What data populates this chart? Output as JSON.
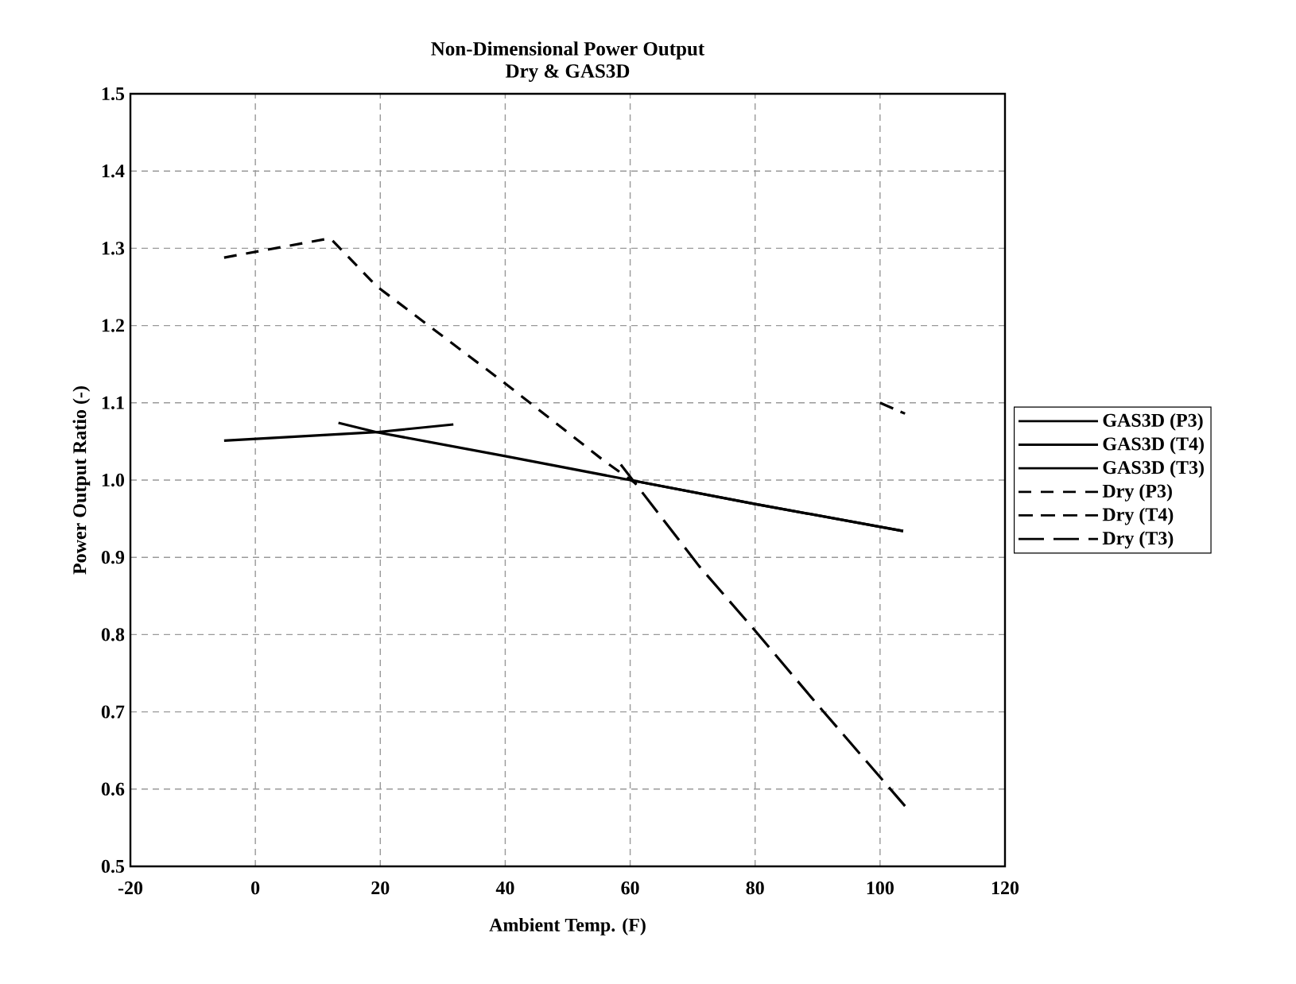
{
  "chart_data": {
    "type": "line",
    "title": "Non-Dimensional Power Output",
    "subtitle": "Dry & GAS3D",
    "xlabel": "Ambient Temp. (F)",
    "ylabel": "Power Output Ratio (-)",
    "xlim": [
      -20,
      120
    ],
    "xticks": [
      -20,
      0,
      20,
      40,
      60,
      80,
      100,
      120
    ],
    "ylim": [
      0.5,
      1.5
    ],
    "yticks": [
      0.5,
      0.6,
      0.7,
      0.8,
      0.9,
      {
        "value": 1.0,
        "label": "1.0"
      },
      1.1,
      1.2,
      1.3,
      1.4,
      1.5
    ],
    "grid": true,
    "legend": "right",
    "marker": "none",
    "series": [
      {
        "name": "GAS3D (P3)",
        "color": "#000000",
        "line_style": "solid",
        "x": [
          -5,
          19.4,
          31.7
        ],
        "values": [
          1.051,
          1.062,
          1.072
        ]
      },
      {
        "name": "GAS3D (T4)",
        "color": "#000000",
        "line_style": "solid",
        "x": [
          13.3,
          19.4,
          40,
          60,
          80,
          103.7
        ],
        "values": [
          1.074,
          1.062,
          1.031,
          1.0,
          0.969,
          0.934
        ]
      },
      {
        "name": "GAS3D (T3)",
        "color": "#000000",
        "line_style": "solid",
        "x": [
          60,
          80,
          103.7
        ],
        "values": [
          1.0,
          0.969,
          0.934
        ]
      },
      {
        "name": "Dry  (P3)",
        "color": "#000000",
        "line_style": "dashed",
        "x": [
          -5,
          12,
          19.4,
          40,
          55.8,
          61
        ],
        "values": [
          1.288,
          1.313,
          1.251,
          1.125,
          1.025,
          0.995
        ]
      },
      {
        "name": "Dry  (T4)",
        "color": "#000000",
        "line_style": "dashed",
        "x": [
          100,
          104
        ],
        "values": [
          1.1,
          1.086
        ]
      },
      {
        "name": "Dry (T3)",
        "color": "#000000",
        "line_style": "dashed",
        "x": [
          58.5,
          71,
          80,
          89.7,
          104
        ],
        "values": [
          1.02,
          0.889,
          0.805,
          0.712,
          0.578
        ]
      }
    ]
  }
}
